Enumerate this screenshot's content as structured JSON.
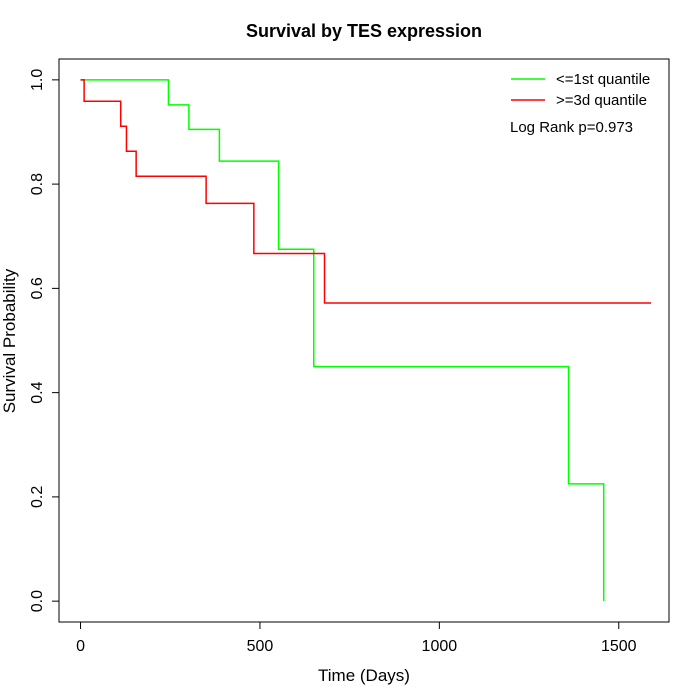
{
  "chart_data": {
    "type": "line",
    "step": true,
    "title": "Survival by TES expression",
    "xlabel": "Time (Days)",
    "ylabel": "Survival Probability",
    "xlim": [
      -60,
      1640
    ],
    "ylim": [
      -0.04,
      1.04
    ],
    "x_ticks": [
      0,
      500,
      1000,
      1500
    ],
    "y_ticks": [
      0.0,
      0.2,
      0.4,
      0.6,
      0.8,
      1.0
    ],
    "x_tick_labels": [
      "0",
      "500",
      "1000",
      "1500"
    ],
    "y_tick_labels": [
      "0.0",
      "0.2",
      "0.4",
      "0.6",
      "0.8",
      "1.0"
    ],
    "legend_position": "top-right",
    "annotation": "Log Rank p=0.973",
    "series": [
      {
        "name": "<=1st quantile",
        "color": "#00ff00",
        "x": [
          0,
          245,
          302,
          387,
          552,
          650,
          1360,
          1458
        ],
        "y": [
          1.0,
          0.952,
          0.905,
          0.844,
          0.675,
          0.45,
          0.225,
          0.0
        ],
        "end_x": 1458
      },
      {
        "name": ">=3d quantile",
        "color": "#ff0000",
        "x": [
          0,
          10,
          112,
          128,
          155,
          350,
          483,
          680
        ],
        "y": [
          1.0,
          0.959,
          0.911,
          0.863,
          0.815,
          0.763,
          0.667,
          0.572
        ],
        "end_x": 1590
      }
    ]
  }
}
